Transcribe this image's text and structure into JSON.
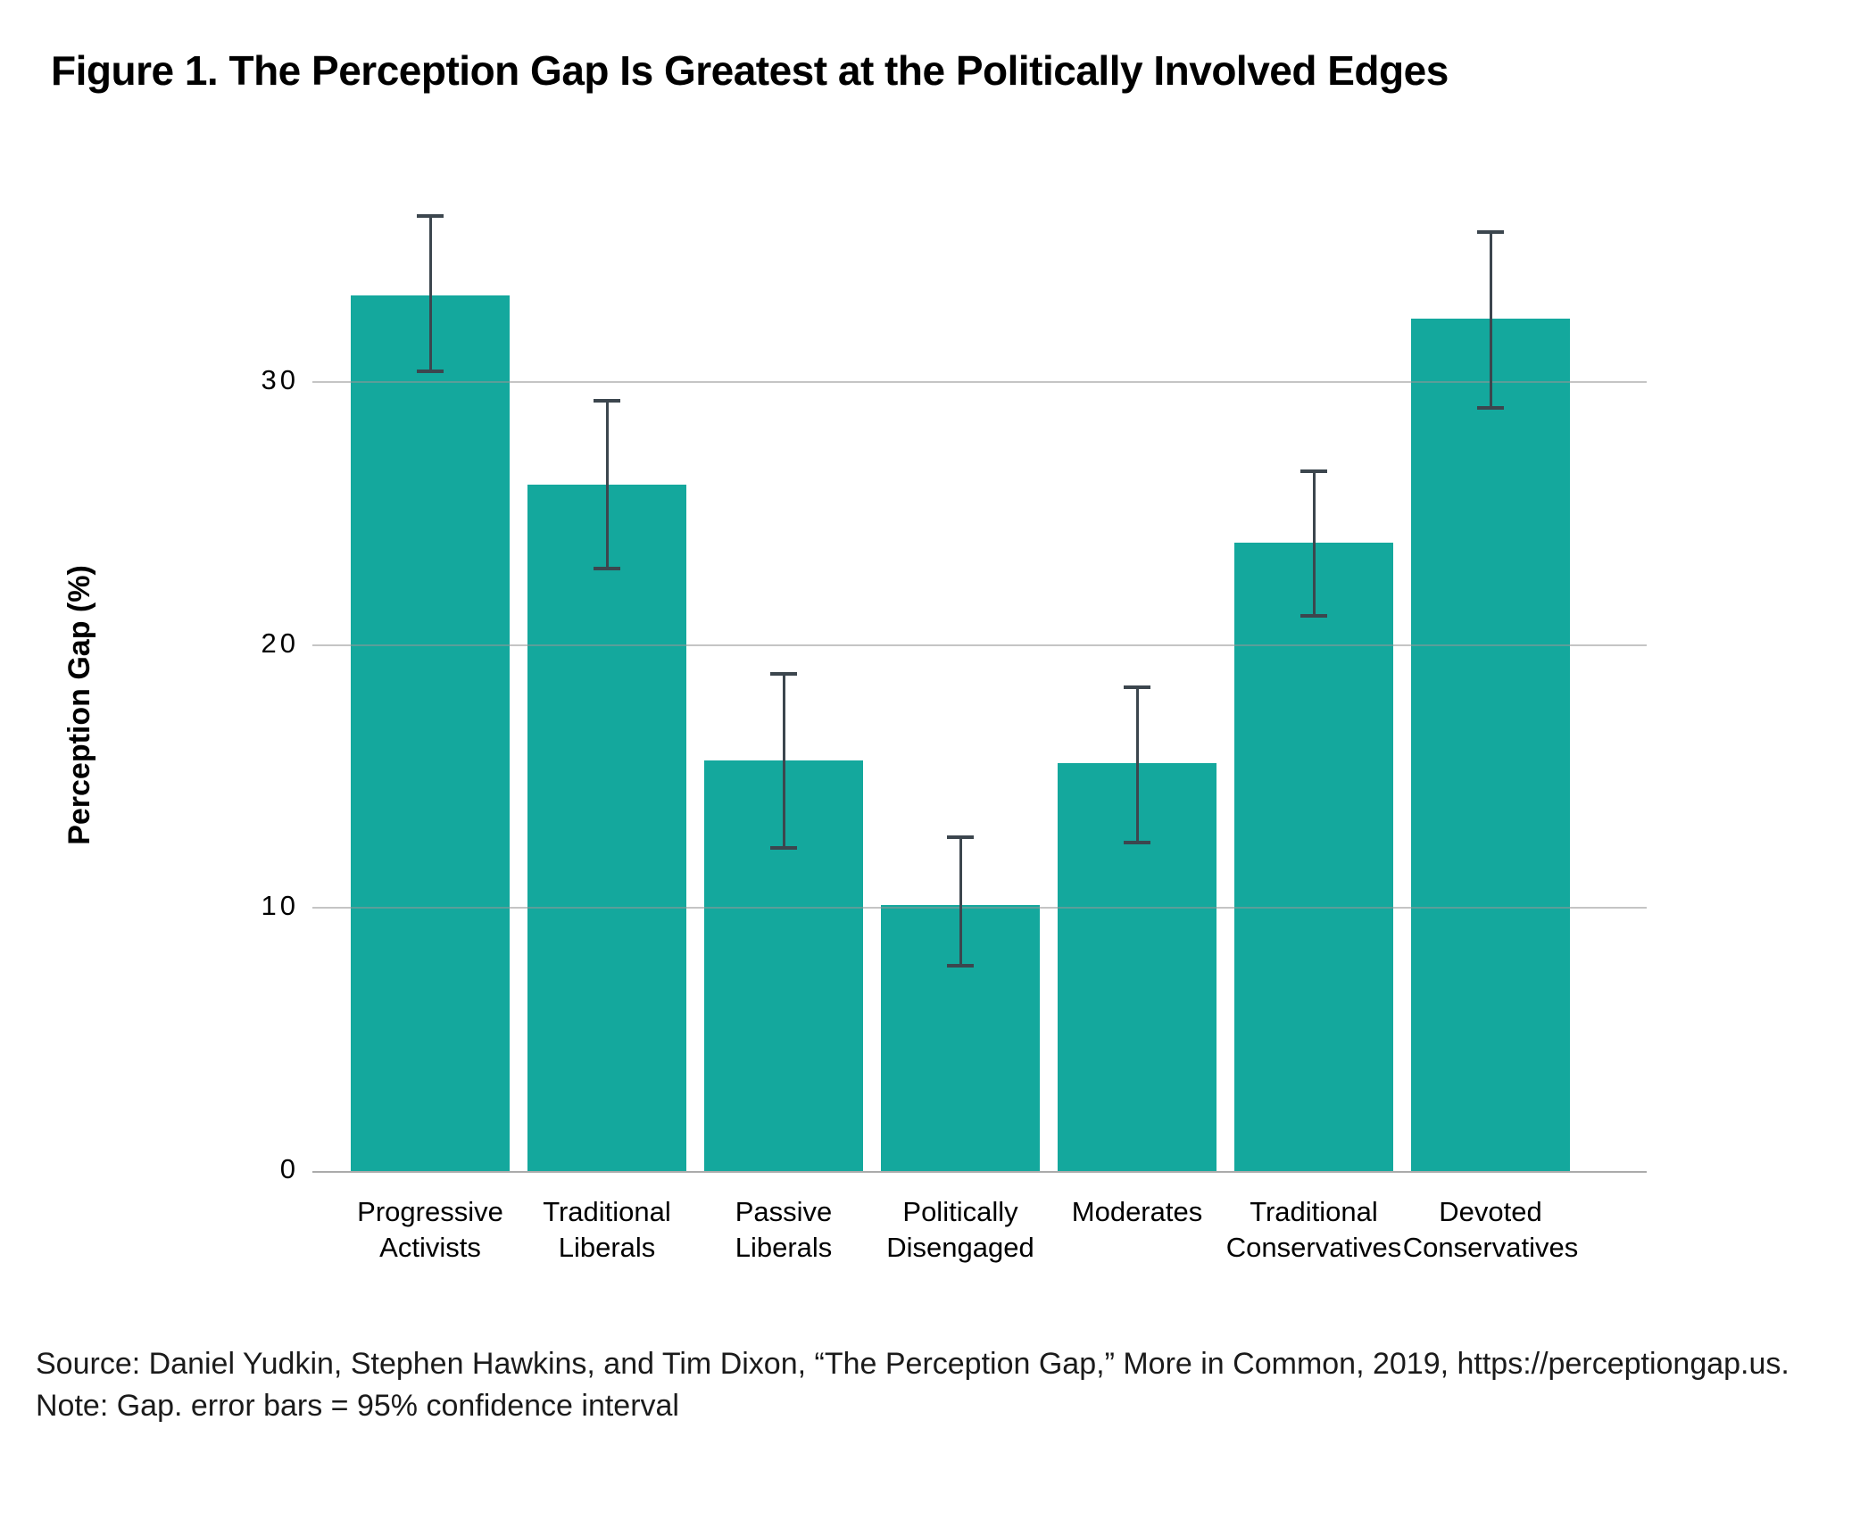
{
  "figure": {
    "title": "Figure 1. The Perception Gap Is Greatest at the Politically Involved Edges",
    "source_line": "Source: Daniel Yudkin, Stephen Hawkins, and Tim Dixon, “The Perception Gap,” More in Common, 2019, https://perceptiongap.us.",
    "note_line": "Note: Gap. error bars = 95% confidence interval"
  },
  "chart_data": {
    "type": "bar",
    "title": "Figure 1. The Perception Gap Is Greatest at the Politically Involved Edges",
    "xlabel": "",
    "ylabel": "Perception Gap (%)",
    "ylim": [
      0,
      38
    ],
    "yticks": [
      0,
      10,
      20,
      30
    ],
    "grid": true,
    "legend": false,
    "categories": [
      "Progressive Activists",
      "Traditional Liberals",
      "Passive Liberals",
      "Politically Disengaged",
      "Moderates",
      "Traditional Conservatives",
      "Devoted Conservatives"
    ],
    "categories_wrapped": [
      [
        "Progressive",
        "Activists"
      ],
      [
        "Traditional",
        "Liberals"
      ],
      [
        "Passive",
        "Liberals"
      ],
      [
        "Politically",
        "Disengaged"
      ],
      [
        "Moderates"
      ],
      [
        "Traditional",
        "Conservatives"
      ],
      [
        "Devoted",
        "Conservatives"
      ]
    ],
    "values": [
      33.3,
      26.1,
      15.6,
      10.1,
      15.5,
      23.9,
      32.4
    ],
    "ci_low": [
      30.4,
      22.9,
      12.3,
      7.8,
      12.5,
      21.1,
      29.0
    ],
    "ci_high": [
      36.3,
      29.3,
      18.9,
      12.7,
      18.4,
      26.6,
      35.7
    ],
    "error_bar_meaning": "95% confidence interval"
  },
  "colors": {
    "bar": "#14a89d",
    "error_bar": "#3c464e",
    "gridline": "#c9c9c9",
    "axis_line": "#ababab",
    "text": "#000000"
  }
}
